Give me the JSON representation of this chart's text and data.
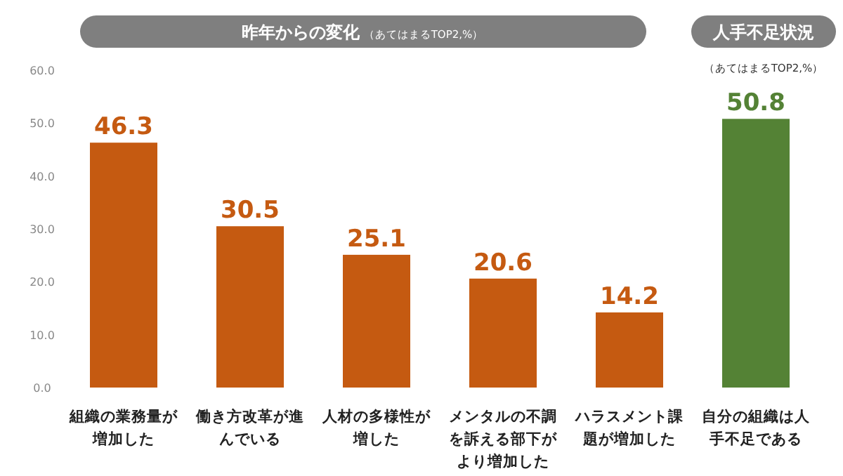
{
  "chart_data": {
    "type": "bar",
    "title": "昨年からの変化",
    "subtitle": "（あてはまるTOP2,%）",
    "annotations": [
      "人手不足状況",
      "（あてはまるTOP2,%）"
    ],
    "categories": [
      "組織の業務量が増加した",
      "働き方改革が進んでいる",
      "人材の多様性が増した",
      "メンタルの不調を訴える部下がより増加した",
      "ハラスメント課題が増加した",
      "自分の組織は人手不足である"
    ],
    "values": [
      46.3,
      30.5,
      25.1,
      20.6,
      14.2,
      50.8
    ],
    "colors": [
      "#c55a11",
      "#c55a11",
      "#c55a11",
      "#c55a11",
      "#c55a11",
      "#548235"
    ],
    "ylim": [
      0,
      60
    ],
    "yticks": [
      {
        "value": 0,
        "label": "0.0"
      },
      {
        "value": 10,
        "label": "10.0"
      },
      {
        "value": 20,
        "label": "20.0"
      },
      {
        "value": 30,
        "label": "30.0"
      },
      {
        "value": 40,
        "label": "40.0"
      },
      {
        "value": 50,
        "label": "50.0"
      },
      {
        "value": 60,
        "label": "60.0"
      }
    ],
    "data_labels": true,
    "grid": false
  }
}
